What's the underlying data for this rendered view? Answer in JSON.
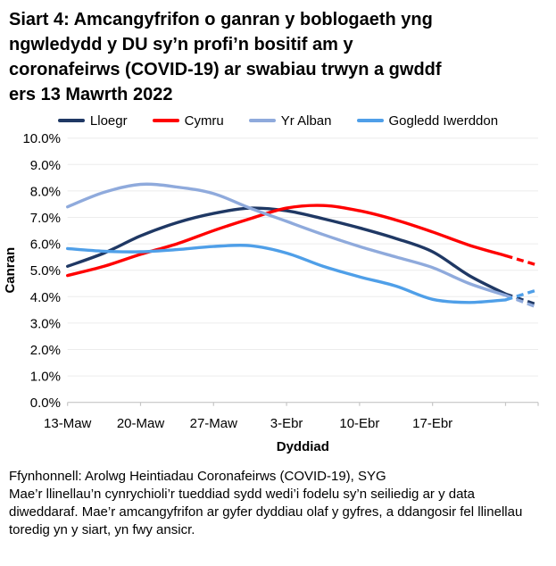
{
  "title_lines": [
    "Siart 4: Amcangyfrifon o ganran y boblogaeth yng",
    "ngwledydd y DU sy’n profi’n bositif am y",
    "coronafeirws (COVID-19) ar swabiau trwyn a gwddf",
    "ers 13 Mawrth 2022"
  ],
  "footer": {
    "source": "Ffynhonnell: Arolwg Heintiadau Coronafeirws (COVID-19), SYG",
    "note": "Mae’r llinellau’n cynrychioli’r tueddiad sydd wedi’i fodelu sy’n seiliedig ar y data diweddaraf. Mae’r amcangyfrifon ar gyfer dyddiau olaf y gyfres, a ddangosir fel llinellau toredig yn y siart, yn fwy ansicr."
  },
  "chart_data": {
    "type": "line",
    "title": "Siart 4: Amcangyfrifon o ganran y boblogaeth yng ngwledydd y DU sy’n profi’n bositif am y coronafeirws (COVID-19) ar swabiau trwyn a gwddf ers 13 Mawrth 2022",
    "xlabel": "Dyddiad",
    "ylabel": "Canran",
    "ylim": [
      0,
      10
    ],
    "y_tick_labels": [
      "0.0%",
      "1.0%",
      "2.0%",
      "3.0%",
      "4.0%",
      "5.0%",
      "6.0%",
      "7.0%",
      "8.0%",
      "9.0%",
      "10.0%"
    ],
    "x_ticks": [
      {
        "label": "13-Maw",
        "day": 0
      },
      {
        "label": "20-Maw",
        "day": 7
      },
      {
        "label": "27-Maw",
        "day": 14
      },
      {
        "label": "3-Ebr",
        "day": 21
      },
      {
        "label": "10-Ebr",
        "day": 28
      },
      {
        "label": "17-Ebr",
        "day": 35
      }
    ],
    "unlabeled_tick_days": [
      42
    ],
    "x_range_days": [
      0,
      45
    ],
    "solid_until_day": 42,
    "legend_position": "top",
    "grid": "horizontal",
    "days": [
      0,
      3.5,
      7,
      10.5,
      14,
      17.5,
      21,
      24.5,
      28,
      31.5,
      35,
      38.5,
      42,
      45
    ],
    "series": [
      {
        "name": "Lloegr",
        "color": "#1F3864",
        "values": [
          5.15,
          5.65,
          6.3,
          6.8,
          7.15,
          7.35,
          7.25,
          6.95,
          6.6,
          6.2,
          5.7,
          4.8,
          4.1,
          3.7
        ]
      },
      {
        "name": "Cymru",
        "color": "#FF0000",
        "values": [
          4.8,
          5.15,
          5.6,
          6.0,
          6.5,
          6.95,
          7.35,
          7.45,
          7.25,
          6.9,
          6.45,
          5.95,
          5.55,
          5.2
        ]
      },
      {
        "name": "Yr Alban",
        "color": "#8FAADC",
        "values": [
          7.4,
          7.95,
          8.25,
          8.15,
          7.9,
          7.35,
          6.85,
          6.35,
          5.9,
          5.5,
          5.1,
          4.5,
          4.05,
          3.6
        ]
      },
      {
        "name": "Gogledd Iwerddon",
        "color": "#4F9FE8",
        "values": [
          5.82,
          5.72,
          5.7,
          5.78,
          5.9,
          5.93,
          5.65,
          5.15,
          4.75,
          4.4,
          3.9,
          3.78,
          3.88,
          4.25
        ]
      }
    ],
    "colors": {
      "gridline": "#ECECEC",
      "axis": "#C6C6C6",
      "text": "#000000"
    }
  }
}
